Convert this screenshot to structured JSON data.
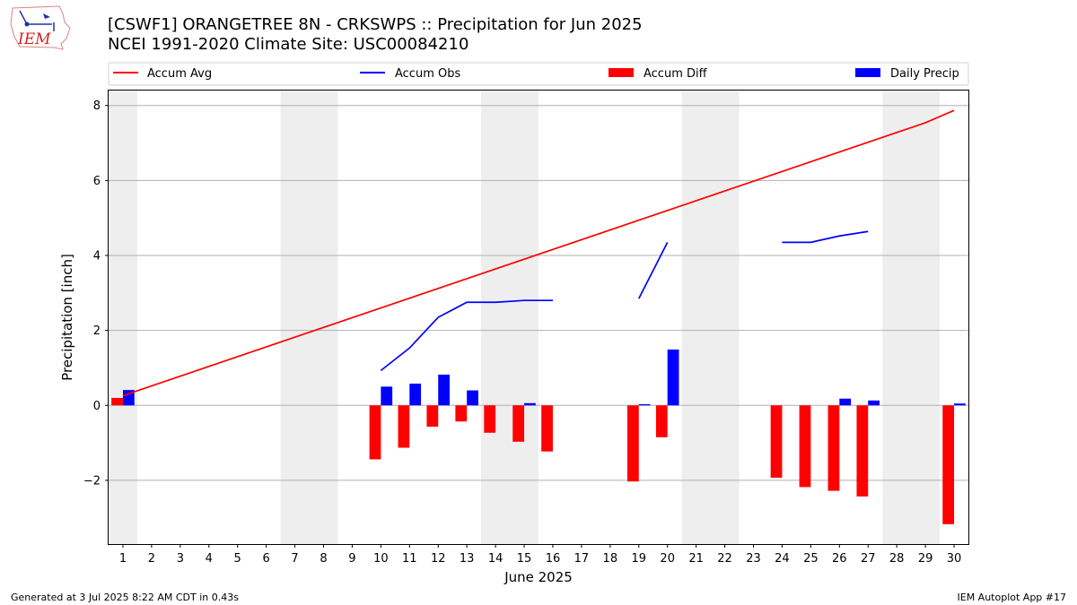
{
  "page": {
    "title_line1": "[CSWF1] ORANGETREE 8N - CRKSWPS :: Precipitation for Jun 2025",
    "title_line2": "NCEI 1991-2020 Climate Site: USC00084210",
    "footer_left": "Generated at 3 Jul 2025 8:22 AM CDT in 0.43s",
    "footer_right": "IEM Autoplot App #17",
    "logo_text": "IEM"
  },
  "colors": {
    "accum_avg": "#ff0000",
    "accum_obs": "#0000ff",
    "accum_diff": "#ff0000",
    "daily_precip": "#0000ff",
    "weekend_shade": "#eeeeee",
    "grid": "#b0b0b0"
  },
  "chart_data": {
    "type": "bar",
    "xlabel": "June 2025",
    "ylabel": "Precipitation [inch]",
    "xlim": [
      0.5,
      30.5
    ],
    "ylim": [
      -3.7,
      8.4
    ],
    "yticks": [
      -2,
      0,
      2,
      4,
      6,
      8
    ],
    "ytick_labels": [
      "−2",
      "0",
      "2",
      "4",
      "6",
      "8"
    ],
    "grid": "horizontal",
    "legend_position": "top",
    "legend": [
      "Accum Avg",
      "Accum Obs",
      "Accum Diff",
      "Daily Precip"
    ],
    "days": [
      1,
      2,
      3,
      4,
      5,
      6,
      7,
      8,
      9,
      10,
      11,
      12,
      13,
      14,
      15,
      16,
      17,
      18,
      19,
      20,
      21,
      22,
      23,
      24,
      25,
      26,
      27,
      28,
      29,
      30
    ],
    "weekend_spans": [
      [
        0.5,
        1.5
      ],
      [
        6.5,
        8.5
      ],
      [
        13.5,
        15.5
      ],
      [
        20.5,
        22.5
      ],
      [
        27.5,
        29.5
      ]
    ],
    "series": [
      {
        "name": "Accum Avg",
        "type": "line",
        "values": [
          0.26,
          0.52,
          0.78,
          1.04,
          1.3,
          1.56,
          1.82,
          2.08,
          2.34,
          2.6,
          2.86,
          3.12,
          3.38,
          3.64,
          3.9,
          4.16,
          4.42,
          4.68,
          4.94,
          5.2,
          5.46,
          5.72,
          5.98,
          6.24,
          6.5,
          6.76,
          7.02,
          7.28,
          7.54,
          7.87
        ]
      },
      {
        "name": "Accum Obs",
        "type": "line",
        "values": [
          null,
          null,
          null,
          null,
          null,
          null,
          null,
          null,
          null,
          0.93,
          1.53,
          2.35,
          2.75,
          2.75,
          2.8,
          2.8,
          null,
          null,
          2.85,
          4.35,
          null,
          null,
          null,
          4.35,
          4.35,
          4.52,
          4.64,
          null,
          null,
          null
        ]
      },
      {
        "name": "Accum Diff",
        "type": "bar",
        "values": [
          0.2,
          null,
          null,
          null,
          null,
          null,
          null,
          null,
          null,
          -1.44,
          -1.13,
          -0.57,
          -0.43,
          -0.73,
          -0.97,
          -1.23,
          null,
          null,
          -2.03,
          -0.85,
          null,
          null,
          null,
          -1.93,
          -2.18,
          -2.28,
          -2.43,
          null,
          null,
          -3.17
        ]
      },
      {
        "name": "Daily Precip",
        "type": "bar",
        "values": [
          0.41,
          null,
          null,
          null,
          null,
          null,
          null,
          null,
          null,
          0.5,
          0.58,
          0.82,
          0.4,
          null,
          0.06,
          null,
          null,
          null,
          0.03,
          1.49,
          null,
          null,
          null,
          null,
          null,
          0.18,
          0.13,
          null,
          null,
          0.05
        ]
      }
    ]
  }
}
